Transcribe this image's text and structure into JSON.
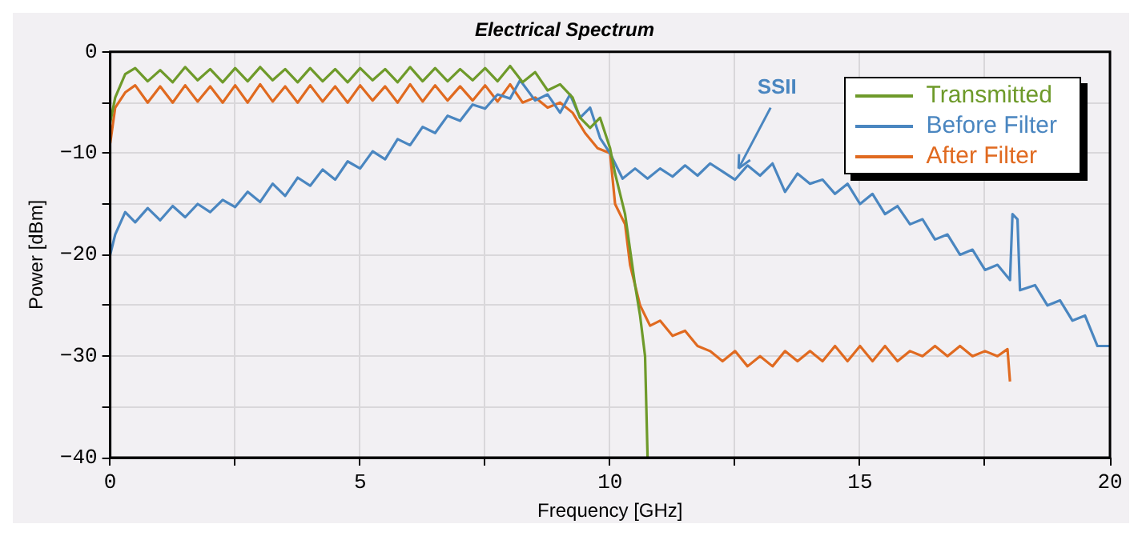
{
  "chart_data": {
    "type": "line",
    "title": "Electrical Spectrum",
    "xlabel": "Frequency [GHz]",
    "ylabel": "Power [dBm]",
    "xlim": [
      0,
      20
    ],
    "xticks": [
      0,
      {
        "value": 2.5,
        "label": null
      },
      5,
      {
        "value": 7.5,
        "label": null
      },
      10,
      {
        "value": 12.5,
        "label": null
      },
      15,
      {
        "value": 17.5,
        "label": null
      },
      20
    ],
    "ylim": [
      -40,
      0
    ],
    "yticks": [
      -40,
      {
        "value": -35,
        "label": null
      },
      -30,
      {
        "value": -25,
        "label": null
      },
      -20,
      {
        "value": -15,
        "label": null
      },
      -10,
      {
        "value": -5,
        "label": null
      },
      0
    ],
    "grid": true,
    "legend": "top right",
    "marker": "none",
    "line_style": "solid",
    "annotations": [
      {
        "text": "SSII",
        "x": 12.57,
        "y": -11.5
      }
    ],
    "series": [
      {
        "name": "Transmitted",
        "color": "#6e9a2a",
        "x": [
          0,
          0.1,
          0.3,
          0.5,
          0.75,
          1,
          1.25,
          1.5,
          1.75,
          2,
          2.25,
          2.5,
          2.75,
          3,
          3.25,
          3.5,
          3.75,
          4,
          4.25,
          4.5,
          4.75,
          5,
          5.25,
          5.5,
          5.75,
          6,
          6.25,
          6.5,
          6.75,
          7,
          7.25,
          7.5,
          7.75,
          8,
          8.25,
          8.5,
          8.75,
          9,
          9.25,
          9.4,
          9.6,
          9.8,
          10,
          10.1,
          10.3,
          10.5,
          10.6,
          10.7,
          10.75
        ],
        "values": [
          -7,
          -4.5,
          -2.2,
          -1.6,
          -2.9,
          -1.8,
          -3,
          -1.5,
          -2.8,
          -1.7,
          -3,
          -1.6,
          -2.9,
          -1.5,
          -2.8,
          -1.7,
          -3,
          -1.6,
          -2.9,
          -1.7,
          -3,
          -1.6,
          -2.8,
          -1.7,
          -3,
          -1.5,
          -2.9,
          -1.6,
          -2.9,
          -1.7,
          -2.8,
          -1.6,
          -2.9,
          -1.4,
          -3,
          -2,
          -3.8,
          -3.2,
          -4.5,
          -6.5,
          -7.5,
          -6.5,
          -9.5,
          -12,
          -16,
          -23,
          -26,
          -30,
          -40
        ]
      },
      {
        "name": "Before Filter",
        "color": "#4a86c0",
        "x": [
          0,
          0.1,
          0.3,
          0.5,
          0.75,
          1,
          1.25,
          1.5,
          1.75,
          2,
          2.25,
          2.5,
          2.75,
          3,
          3.25,
          3.5,
          3.75,
          4,
          4.25,
          4.5,
          4.75,
          5,
          5.25,
          5.5,
          5.75,
          6,
          6.25,
          6.5,
          6.75,
          7,
          7.25,
          7.5,
          7.75,
          8,
          8.2,
          8.5,
          8.75,
          9,
          9.2,
          9.4,
          9.6,
          9.8,
          10,
          10.25,
          10.5,
          10.75,
          11,
          11.25,
          11.5,
          11.75,
          12,
          12.25,
          12.5,
          12.75,
          13,
          13.25,
          13.5,
          13.75,
          14,
          14.25,
          14.5,
          14.75,
          15,
          15.25,
          15.5,
          15.75,
          16,
          16.25,
          16.5,
          16.75,
          17,
          17.25,
          17.5,
          17.75,
          18,
          18.05,
          18.15,
          18.2,
          18.5,
          18.75,
          19,
          19.25,
          19.5,
          19.75,
          20
        ],
        "values": [
          -20,
          -18,
          -15.8,
          -16.8,
          -15.4,
          -16.6,
          -15.2,
          -16.3,
          -15,
          -15.8,
          -14.6,
          -15.3,
          -13.8,
          -14.8,
          -13,
          -14.2,
          -12.4,
          -13.2,
          -11.6,
          -12.6,
          -10.8,
          -11.5,
          -9.8,
          -10.6,
          -8.6,
          -9.2,
          -7.4,
          -8,
          -6.3,
          -6.8,
          -5.2,
          -5.6,
          -4.2,
          -4.6,
          -2.8,
          -4.8,
          -4.2,
          -6,
          -4.2,
          -6.5,
          -5.5,
          -8.5,
          -10,
          -12.5,
          -11.5,
          -12.5,
          -11.5,
          -12.3,
          -11.2,
          -12.2,
          -11,
          -11.8,
          -12.6,
          -11.2,
          -12.2,
          -11,
          -13.8,
          -12,
          -13,
          -12.6,
          -14,
          -13,
          -15,
          -14,
          -16,
          -15.2,
          -17,
          -16.5,
          -18.5,
          -18,
          -20,
          -19.5,
          -21.5,
          -21,
          -22.5,
          -16,
          -16.5,
          -23.5,
          -23,
          -25,
          -24.5,
          -26.5,
          -26,
          -29,
          -29
        ]
      },
      {
        "name": "After Filter",
        "color": "#e06a20",
        "x": [
          0,
          0.1,
          0.3,
          0.5,
          0.75,
          1,
          1.25,
          1.5,
          1.75,
          2,
          2.25,
          2.5,
          2.75,
          3,
          3.25,
          3.5,
          3.75,
          4,
          4.25,
          4.5,
          4.75,
          5,
          5.25,
          5.5,
          5.75,
          6,
          6.25,
          6.5,
          6.75,
          7,
          7.25,
          7.5,
          7.75,
          8,
          8.25,
          8.5,
          8.75,
          9,
          9.25,
          9.5,
          9.75,
          10,
          10.1,
          10.3,
          10.4,
          10.6,
          10.8,
          11,
          11.25,
          11.5,
          11.75,
          12,
          12.25,
          12.5,
          12.75,
          13,
          13.25,
          13.5,
          13.75,
          14,
          14.25,
          14.5,
          14.75,
          15,
          15.25,
          15.5,
          15.75,
          16,
          16.25,
          16.5,
          16.75,
          17,
          17.25,
          17.5,
          17.75,
          17.95,
          18
        ],
        "values": [
          -9,
          -5.5,
          -4,
          -3.3,
          -5,
          -3.4,
          -5,
          -3.3,
          -4.9,
          -3.4,
          -5,
          -3.3,
          -5,
          -3.2,
          -4.9,
          -3.4,
          -5,
          -3.3,
          -4.9,
          -3.4,
          -5,
          -3.3,
          -4.8,
          -3.4,
          -5,
          -3.2,
          -4.9,
          -3.3,
          -4.8,
          -3.4,
          -4.8,
          -3.3,
          -4.9,
          -3.2,
          -5,
          -4.5,
          -5.5,
          -5,
          -6,
          -8,
          -9.5,
          -10,
          -15,
          -17,
          -21,
          -25,
          -27,
          -26.5,
          -28,
          -27.5,
          -29,
          -29.5,
          -30.5,
          -29.5,
          -31,
          -30,
          -31,
          -29.5,
          -30.5,
          -29.5,
          -30.5,
          -29,
          -30.5,
          -29,
          -30.5,
          -29,
          -30.5,
          -29.5,
          -30,
          -29,
          -30,
          -29,
          -30,
          -29.5,
          -30,
          -29.3,
          -32.5
        ]
      }
    ]
  }
}
